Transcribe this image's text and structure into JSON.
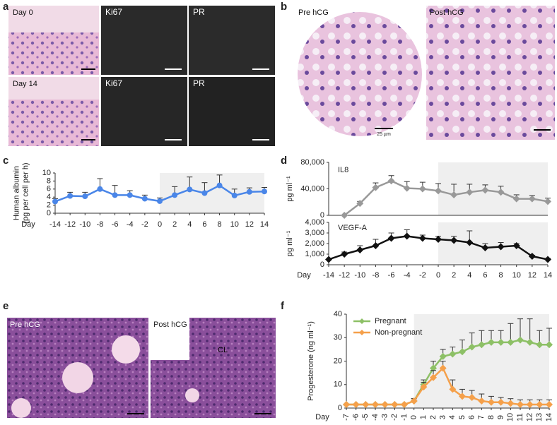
{
  "figure_labels": [
    "a",
    "b",
    "c",
    "d",
    "e",
    "f"
  ],
  "micrographs": {
    "a": {
      "rows": [
        {
          "label": "Day 0",
          "stains": [
            "Ki67",
            "PR"
          ]
        },
        {
          "label": "Day 14",
          "stains": [
            "Ki67",
            "PR"
          ]
        }
      ]
    },
    "b": {
      "left": "Pre hCG",
      "right": "Post hCG",
      "scale": "25 µm"
    },
    "e": {
      "left": "Pre hCG",
      "right": "Post hCG",
      "marker": "CL"
    }
  },
  "chart_data": [
    {
      "type": "line",
      "ylabel": [
        "Human albumin",
        "(pg per cell per h)"
      ],
      "xlabel": "Day",
      "xlim": [
        -14,
        14
      ],
      "xticks": [
        -14,
        -12,
        -10,
        -8,
        -6,
        -4,
        -2,
        0,
        2,
        4,
        6,
        8,
        10,
        12,
        14
      ],
      "ylim": [
        0,
        10
      ],
      "yticks": [
        0,
        2,
        4,
        6,
        8,
        10
      ],
      "shade": [
        0,
        14
      ],
      "marker": "circle",
      "series": [
        {
          "color": "#4a86e8",
          "x": [
            -14,
            -12,
            -10,
            -8,
            -6,
            -4,
            -2,
            0,
            2,
            4,
            6,
            8,
            10,
            12,
            14
          ],
          "values": [
            2.9,
            4.3,
            4.2,
            6.0,
            4.5,
            4.5,
            3.6,
            3.0,
            4.5,
            5.9,
            5.0,
            6.9,
            4.4,
            5.3,
            5.4
          ],
          "errors": [
            0.7,
            0.9,
            1.0,
            2.6,
            2.4,
            1.1,
            0.9,
            0.8,
            2.1,
            3.1,
            2.6,
            2.6,
            1.6,
            1.0,
            1.0
          ]
        }
      ]
    },
    {
      "type": "line",
      "title": "IL8",
      "ylabel": [
        "pg ml⁻¹"
      ],
      "xlim": [
        -14,
        14
      ],
      "ylim": [
        0,
        80000
      ],
      "yticks": [
        0,
        {
          "value": 40000,
          "label": "40,000"
        },
        {
          "value": 80000,
          "label": "80,000"
        }
      ],
      "shade": [
        0,
        14
      ],
      "marker": "diamond",
      "series": [
        {
          "color": "#999999",
          "x": [
            -12,
            -10,
            -8,
            -6,
            -4,
            -2,
            0,
            2,
            4,
            6,
            8,
            10,
            12,
            14
          ],
          "values": [
            0,
            18000,
            42000,
            52000,
            41000,
            40000,
            37000,
            31000,
            35000,
            38000,
            35000,
            25000,
            25000,
            21000
          ],
          "errors": [
            null,
            3000,
            7000,
            8000,
            10000,
            10000,
            11000,
            16000,
            12000,
            8000,
            9000,
            6000,
            5000,
            5000
          ]
        }
      ]
    },
    {
      "type": "line",
      "title": "VEGF-A",
      "ylabel": [
        "pg ml⁻¹"
      ],
      "xlabel": "Day",
      "xlim": [
        -14,
        14
      ],
      "xticks": [
        -14,
        -12,
        -10,
        -8,
        -6,
        -4,
        -2,
        0,
        2,
        4,
        6,
        8,
        10,
        12,
        14
      ],
      "ylim": [
        0,
        4000
      ],
      "yticks": [
        0,
        {
          "value": 1000,
          "label": "1,000"
        },
        {
          "value": 2000,
          "label": "2,000"
        },
        {
          "value": 3000,
          "label": "3,000"
        },
        {
          "value": 4000,
          "label": "4,000"
        }
      ],
      "shade": [
        0,
        14
      ],
      "marker": "diamond",
      "series": [
        {
          "color": "#111111",
          "x": [
            -14,
            -12,
            -10,
            -8,
            -6,
            -4,
            -2,
            0,
            2,
            4,
            6,
            8,
            10,
            12,
            14
          ],
          "values": [
            500,
            1000,
            1400,
            1800,
            2500,
            2700,
            2500,
            2400,
            2300,
            2100,
            1600,
            1700,
            1800,
            800,
            500
          ],
          "errors": [
            null,
            200,
            400,
            600,
            500,
            600,
            300,
            300,
            400,
            1100,
            400,
            400,
            200,
            100,
            100
          ]
        }
      ]
    },
    {
      "type": "line",
      "ylabel": [
        "Progesterone (ng ml⁻¹)"
      ],
      "xlabel": "Day",
      "xlim": [
        -7,
        14
      ],
      "xticks": [
        -7,
        -6,
        -5,
        -4,
        -3,
        -2,
        -1,
        0,
        1,
        2,
        3,
        4,
        5,
        6,
        7,
        8,
        9,
        10,
        11,
        12,
        13,
        14
      ],
      "ylim": [
        0,
        40
      ],
      "yticks": [
        0,
        10,
        20,
        30,
        40
      ],
      "shade": [
        0,
        14
      ],
      "marker": "diamond",
      "legend": "top-left",
      "series": [
        {
          "name": "Pregnant",
          "color": "#8dc066",
          "x": [
            -7,
            -6,
            -5,
            -4,
            -3,
            -2,
            -1,
            0,
            1,
            2,
            3,
            4,
            5,
            6,
            7,
            8,
            9,
            10,
            11,
            12,
            13,
            14
          ],
          "values": [
            1.5,
            1.5,
            1.5,
            1.5,
            1.5,
            1.5,
            1.5,
            3,
            10,
            17,
            22,
            23,
            24,
            26,
            27,
            28,
            28,
            28,
            29,
            28,
            27,
            27
          ],
          "errors": [
            null,
            null,
            null,
            null,
            null,
            null,
            null,
            1,
            2,
            3,
            3,
            3,
            5,
            6,
            6,
            5,
            5,
            8,
            9,
            10,
            6,
            7
          ]
        },
        {
          "name": "Non-pregnant",
          "color": "#f5a04a",
          "x": [
            -7,
            -6,
            -5,
            -4,
            -3,
            -2,
            -1,
            0,
            1,
            2,
            3,
            4,
            5,
            6,
            7,
            8,
            9,
            10,
            11,
            12,
            13,
            14
          ],
          "values": [
            1.5,
            1.5,
            1.5,
            1.5,
            1.5,
            1.5,
            1.5,
            3,
            9,
            13,
            17,
            8,
            5,
            4.5,
            3,
            2.5,
            2.5,
            2,
            1.5,
            1.5,
            1.5,
            1.5
          ],
          "errors": [
            null,
            null,
            null,
            null,
            null,
            null,
            null,
            1,
            2,
            3,
            3,
            4,
            3,
            3,
            3,
            2.5,
            2,
            2,
            2,
            2,
            2,
            2
          ]
        }
      ]
    }
  ]
}
